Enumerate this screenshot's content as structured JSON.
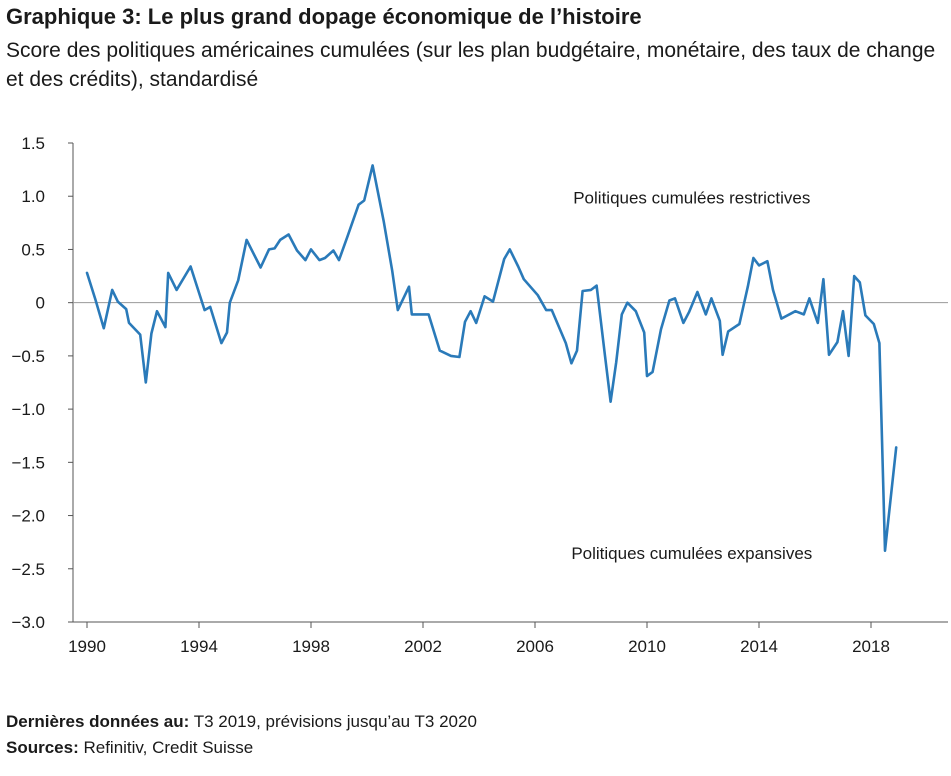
{
  "chart_data": {
    "type": "line",
    "title": "Graphique 3: Le plus grand dopage économique de l’histoire",
    "subtitle": "Score des politiques américaines cumulées (sur les plan budgétaire, monétaire, des taux de change et des crédits), standardisé",
    "xlabel": "",
    "ylabel": "",
    "xlim": [
      1989.5,
      2020.75
    ],
    "ylim": [
      -3.0,
      1.5
    ],
    "grid": false,
    "y_ticks": [
      {
        "value": 1.5,
        "label": "1.5"
      },
      {
        "value": 1.0,
        "label": "1.0"
      },
      {
        "value": 0.5,
        "label": "0.5"
      },
      {
        "value": 0,
        "label": "0"
      },
      {
        "value": -0.5,
        "label": "−0.5"
      },
      {
        "value": -1.0,
        "label": "−1.0"
      },
      {
        "value": -1.5,
        "label": "−1.5"
      },
      {
        "value": -2.0,
        "label": "−2.0"
      },
      {
        "value": -2.5,
        "label": "−2.5"
      },
      {
        "value": -3.0,
        "label": "−3.0"
      }
    ],
    "x_ticks": [
      {
        "value": 1990,
        "label": "1990"
      },
      {
        "value": 1994,
        "label": "1994"
      },
      {
        "value": 1998,
        "label": "1998"
      },
      {
        "value": 2002,
        "label": "2002"
      },
      {
        "value": 2006,
        "label": "2006"
      },
      {
        "value": 2010,
        "label": "2010"
      },
      {
        "value": 2014,
        "label": "2014"
      },
      {
        "value": 2018,
        "label": "2018"
      }
    ],
    "annotations": [
      {
        "text": "Politiques cumulées restrictives",
        "x": 2011.6,
        "y": 0.99
      },
      {
        "text": "Politiques cumulées expansives",
        "x": 2011.6,
        "y": -2.35
      }
    ],
    "series": [
      {
        "color": "#2a7ab9",
        "points": [
          [
            1990.0,
            0.28
          ],
          [
            1990.3,
            0.03
          ],
          [
            1990.6,
            -0.24
          ],
          [
            1990.9,
            0.12
          ],
          [
            1991.1,
            0.01
          ],
          [
            1991.4,
            -0.06
          ],
          [
            1991.5,
            -0.19
          ],
          [
            1991.9,
            -0.3
          ],
          [
            1992.1,
            -0.75
          ],
          [
            1992.3,
            -0.29
          ],
          [
            1992.5,
            -0.08
          ],
          [
            1992.8,
            -0.23
          ],
          [
            1992.9,
            0.28
          ],
          [
            1993.2,
            0.12
          ],
          [
            1993.7,
            0.34
          ],
          [
            1994.2,
            -0.07
          ],
          [
            1994.4,
            -0.04
          ],
          [
            1994.8,
            -0.38
          ],
          [
            1995.0,
            -0.28
          ],
          [
            1995.1,
            0.0
          ],
          [
            1995.4,
            0.21
          ],
          [
            1995.7,
            0.59
          ],
          [
            1996.2,
            0.33
          ],
          [
            1996.5,
            0.5
          ],
          [
            1996.7,
            0.51
          ],
          [
            1996.9,
            0.59
          ],
          [
            1997.2,
            0.64
          ],
          [
            1997.5,
            0.49
          ],
          [
            1997.8,
            0.4
          ],
          [
            1998.0,
            0.5
          ],
          [
            1998.3,
            0.4
          ],
          [
            1998.5,
            0.42
          ],
          [
            1998.8,
            0.49
          ],
          [
            1999.0,
            0.4
          ],
          [
            1999.3,
            0.62
          ],
          [
            1999.7,
            0.92
          ],
          [
            1999.9,
            0.96
          ],
          [
            2000.2,
            1.29
          ],
          [
            2000.6,
            0.76
          ],
          [
            2000.9,
            0.3
          ],
          [
            2001.1,
            -0.07
          ],
          [
            2001.5,
            0.15
          ],
          [
            2001.6,
            -0.11
          ],
          [
            2002.2,
            -0.11
          ],
          [
            2002.6,
            -0.45
          ],
          [
            2003.0,
            -0.5
          ],
          [
            2003.3,
            -0.51
          ],
          [
            2003.5,
            -0.18
          ],
          [
            2003.7,
            -0.08
          ],
          [
            2003.9,
            -0.19
          ],
          [
            2004.2,
            0.06
          ],
          [
            2004.5,
            0.01
          ],
          [
            2004.9,
            0.41
          ],
          [
            2005.1,
            0.5
          ],
          [
            2005.4,
            0.34
          ],
          [
            2005.6,
            0.22
          ],
          [
            2006.1,
            0.07
          ],
          [
            2006.4,
            -0.07
          ],
          [
            2006.6,
            -0.07
          ],
          [
            2007.1,
            -0.38
          ],
          [
            2007.3,
            -0.57
          ],
          [
            2007.5,
            -0.45
          ],
          [
            2007.7,
            0.11
          ],
          [
            2008.0,
            0.12
          ],
          [
            2008.2,
            0.16
          ],
          [
            2008.5,
            -0.5
          ],
          [
            2008.7,
            -0.93
          ],
          [
            2008.9,
            -0.56
          ],
          [
            2009.1,
            -0.11
          ],
          [
            2009.3,
            0.0
          ],
          [
            2009.6,
            -0.08
          ],
          [
            2009.9,
            -0.28
          ],
          [
            2010.0,
            -0.69
          ],
          [
            2010.2,
            -0.65
          ],
          [
            2010.5,
            -0.25
          ],
          [
            2010.8,
            0.02
          ],
          [
            2011.0,
            0.04
          ],
          [
            2011.3,
            -0.19
          ],
          [
            2011.5,
            -0.09
          ],
          [
            2011.8,
            0.1
          ],
          [
            2012.1,
            -0.11
          ],
          [
            2012.3,
            0.04
          ],
          [
            2012.6,
            -0.17
          ],
          [
            2012.7,
            -0.49
          ],
          [
            2012.9,
            -0.27
          ],
          [
            2013.3,
            -0.2
          ],
          [
            2013.6,
            0.15
          ],
          [
            2013.8,
            0.42
          ],
          [
            2014.0,
            0.35
          ],
          [
            2014.3,
            0.39
          ],
          [
            2014.5,
            0.12
          ],
          [
            2014.8,
            -0.15
          ],
          [
            2015.3,
            -0.08
          ],
          [
            2015.6,
            -0.11
          ],
          [
            2015.8,
            0.04
          ],
          [
            2016.1,
            -0.19
          ],
          [
            2016.3,
            0.22
          ],
          [
            2016.5,
            -0.49
          ],
          [
            2016.8,
            -0.37
          ],
          [
            2017.0,
            -0.08
          ],
          [
            2017.2,
            -0.5
          ],
          [
            2017.4,
            0.25
          ],
          [
            2017.6,
            0.19
          ],
          [
            2017.8,
            -0.12
          ],
          [
            2018.1,
            -0.2
          ],
          [
            2018.3,
            -0.38
          ],
          [
            2018.5,
            -2.33
          ],
          [
            2018.9,
            -1.36
          ]
        ]
      }
    ]
  },
  "footer": {
    "latest_label": "Dernières données au:",
    "latest_value": " T3 2019, prévisions jusqu’au T3 2020",
    "sources_label": "Sources:",
    "sources_value": " Refinitiv, Credit Suisse"
  }
}
